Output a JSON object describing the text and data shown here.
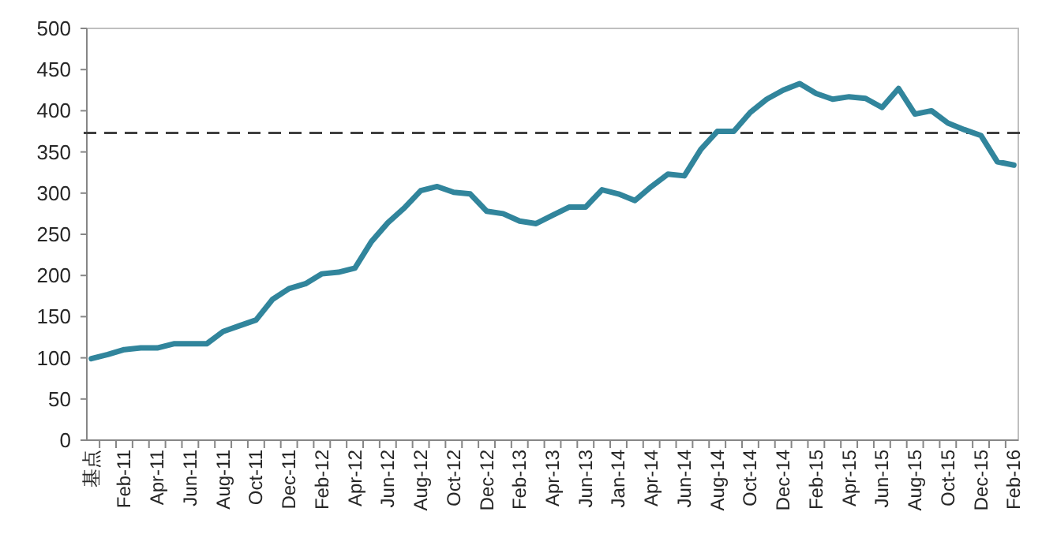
{
  "chart_data": {
    "type": "line",
    "categories": [
      "基点",
      null,
      "Feb-11",
      null,
      "Apr-11",
      null,
      "Jun-11",
      null,
      "Aug-11",
      null,
      "Oct-11",
      null,
      "Dec-11",
      null,
      "Feb-12",
      null,
      "Apr-12",
      null,
      "Jun-12",
      null,
      "Aug-12",
      null,
      "Oct-12",
      null,
      "Dec-12",
      null,
      "Feb-13",
      null,
      "Apr-13",
      null,
      "Jun-13",
      null,
      "Jan-14",
      null,
      "Apr-14",
      null,
      "Jun-14",
      null,
      "Aug-14",
      null,
      "Oct-14",
      null,
      "Dec-14",
      null,
      "Feb-15",
      null,
      "Apr-15",
      null,
      "Jun-15",
      null,
      "Aug-15",
      null,
      "Oct-15",
      null,
      "Dec-15",
      null,
      "Feb-16"
    ],
    "series": [
      {
        "color": "#31859c",
        "values": [
          99,
          104,
          110,
          112,
          112,
          117,
          117,
          117,
          132,
          139,
          146,
          171,
          184,
          190,
          202,
          204,
          209,
          241,
          264,
          282,
          303,
          308,
          301,
          299,
          278,
          275,
          266,
          263,
          273,
          283,
          283,
          304,
          299,
          291,
          308,
          323,
          321,
          353,
          375,
          375,
          398,
          414,
          425,
          433,
          421,
          414,
          417,
          415,
          404,
          427,
          396,
          400,
          385,
          377,
          370,
          338,
          334
        ]
      }
    ],
    "ylim": [
      0,
      500
    ],
    "yticks": [
      0,
      50,
      100,
      150,
      200,
      250,
      300,
      350,
      400,
      450,
      500
    ],
    "ref_lines": [
      {
        "axis": "y",
        "value": 373,
        "color": "#404040",
        "line_style": "dashed"
      }
    ],
    "grid": false,
    "marker": "none",
    "line_style": "solid"
  }
}
